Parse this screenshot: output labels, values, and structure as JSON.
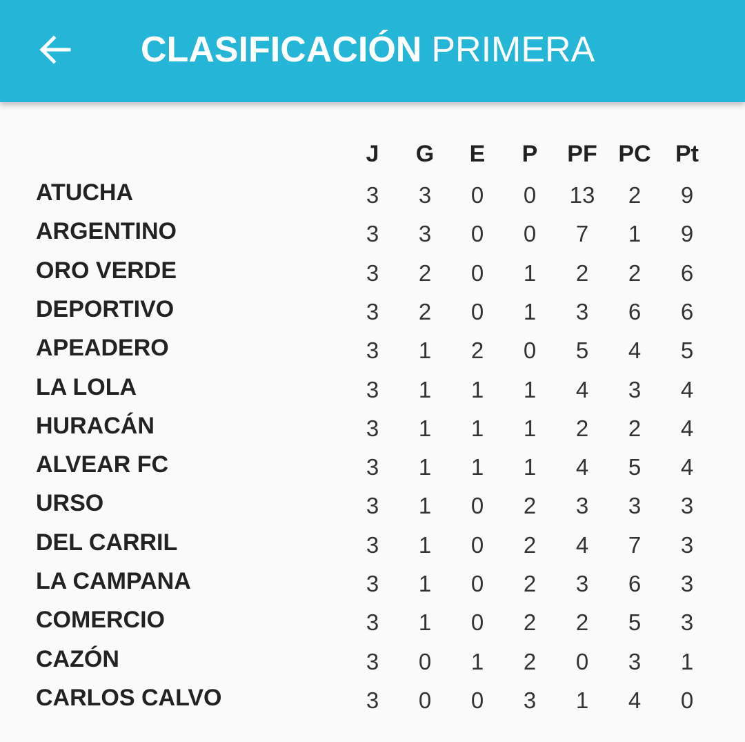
{
  "appbar": {
    "title_bold": "CLASIFICACIÓN",
    "title_regular": "PRIMERA",
    "back_icon": "arrow-left-icon",
    "color": "#25b5d6"
  },
  "table": {
    "columns": [
      "J",
      "G",
      "E",
      "P",
      "PF",
      "PC",
      "Pt"
    ],
    "rows": [
      {
        "team": "ATUCHA",
        "values": [
          "3",
          "3",
          "0",
          "0",
          "13",
          "2",
          "9"
        ]
      },
      {
        "team": "ARGENTINO",
        "values": [
          "3",
          "3",
          "0",
          "0",
          "7",
          "1",
          "9"
        ]
      },
      {
        "team": "ORO VERDE",
        "values": [
          "3",
          "2",
          "0",
          "1",
          "2",
          "2",
          "6"
        ]
      },
      {
        "team": "DEPORTIVO",
        "values": [
          "3",
          "2",
          "0",
          "1",
          "3",
          "6",
          "6"
        ]
      },
      {
        "team": "APEADERO",
        "values": [
          "3",
          "1",
          "2",
          "0",
          "5",
          "4",
          "5"
        ]
      },
      {
        "team": "LA LOLA",
        "values": [
          "3",
          "1",
          "1",
          "1",
          "4",
          "3",
          "4"
        ]
      },
      {
        "team": "HURACÁN",
        "values": [
          "3",
          "1",
          "1",
          "1",
          "2",
          "2",
          "4"
        ]
      },
      {
        "team": "ALVEAR FC",
        "values": [
          "3",
          "1",
          "1",
          "1",
          "4",
          "5",
          "4"
        ]
      },
      {
        "team": "URSO",
        "values": [
          "3",
          "1",
          "0",
          "2",
          "3",
          "3",
          "3"
        ]
      },
      {
        "team": "DEL CARRIL",
        "values": [
          "3",
          "1",
          "0",
          "2",
          "4",
          "7",
          "3"
        ]
      },
      {
        "team": "LA CAMPANA",
        "values": [
          "3",
          "1",
          "0",
          "2",
          "3",
          "6",
          "3"
        ]
      },
      {
        "team": "COMERCIO",
        "values": [
          "3",
          "1",
          "0",
          "2",
          "2",
          "5",
          "3"
        ]
      },
      {
        "team": "CAZÓN",
        "values": [
          "3",
          "0",
          "1",
          "2",
          "0",
          "3",
          "1"
        ]
      },
      {
        "team": "CARLOS CALVO",
        "values": [
          "3",
          "0",
          "0",
          "3",
          "1",
          "4",
          "0"
        ]
      }
    ]
  }
}
